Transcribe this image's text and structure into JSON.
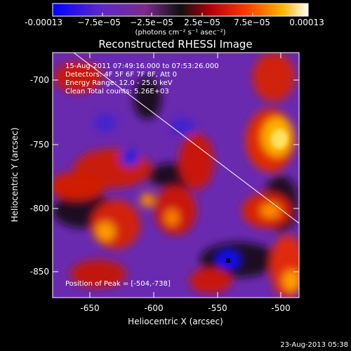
{
  "colorbar": {
    "tick_labels": [
      "-0.00013",
      "−7.5e−05",
      "−2.5e−05",
      "2.5e−05",
      "7.5e−05",
      "0.00013"
    ],
    "units": "(photons cm⁻² s⁻¹ asec⁻²)",
    "range": [
      -0.00013,
      0.00013
    ],
    "colormap": [
      "#0000ff",
      "#5a28c8",
      "#7d2b8c",
      "#101010",
      "#b4000a",
      "#ff3c00",
      "#ffb400",
      "#ffffff"
    ]
  },
  "title": "Reconstructed RHESSI Image",
  "annotations": {
    "time_range": "15-Aug-2011 07:49:16.000 to 07:53:26.000",
    "detectors": "Detectors: 4F 5F 6F 7F 8F, Att 0",
    "energy": "Energy Range: 12.0 - 25.0 keV",
    "method_counts": "Clean     Total counts: 5.26E+03",
    "peak": "Position of Peak = [-504,-738]"
  },
  "axes": {
    "xlabel": "Heliocentric X (arcsec)",
    "ylabel": "Heliocentric Y (arcsec)",
    "x_ticks": [
      "-650",
      "-600",
      "-550",
      "-500"
    ],
    "y_ticks": [
      "-700",
      "-750",
      "-800",
      "-850"
    ],
    "x_range": [
      -680,
      -485
    ],
    "y_range": [
      -870,
      -680
    ]
  },
  "timestamp": "23-Aug-2013 05:38"
}
